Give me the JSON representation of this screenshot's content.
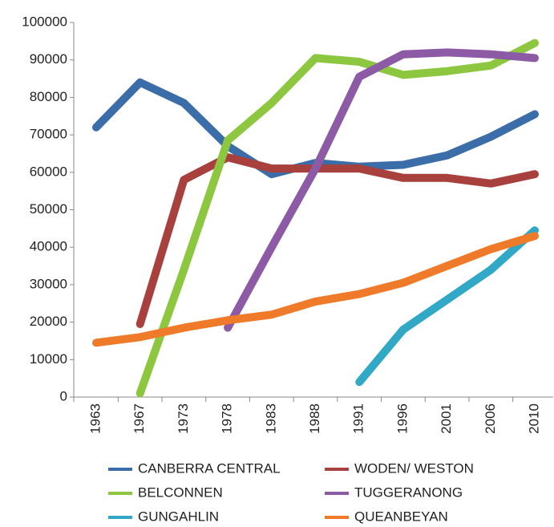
{
  "chart_data": {
    "type": "line",
    "categories": [
      "1963",
      "1967",
      "1973",
      "1978",
      "1983",
      "1988",
      "1991",
      "1996",
      "2001",
      "2006",
      "2010"
    ],
    "series": [
      {
        "name": "CANBERRA CENTRAL",
        "color": "#3b6ea8",
        "values": [
          72000,
          84000,
          78500,
          67000,
          59500,
          62500,
          61500,
          62000,
          64500,
          69500,
          75500
        ]
      },
      {
        "name": "WODEN/ WESTON",
        "color": "#a8403e",
        "values": [
          null,
          19500,
          58000,
          64000,
          61000,
          61000,
          61000,
          58500,
          58500,
          57000,
          59500
        ]
      },
      {
        "name": "BELCONNEN",
        "color": "#8dc63f",
        "values": [
          null,
          1000,
          34000,
          68500,
          78500,
          90500,
          89500,
          86000,
          87000,
          88500,
          94500
        ]
      },
      {
        "name": "TUGGERANONG",
        "color": "#8d5aa5",
        "values": [
          null,
          null,
          null,
          18500,
          40000,
          61000,
          85500,
          91500,
          92000,
          91500,
          90500
        ]
      },
      {
        "name": "GUNGAHLIN",
        "color": "#30a8c6",
        "values": [
          null,
          null,
          null,
          null,
          null,
          null,
          4000,
          18000,
          26000,
          34000,
          44500
        ]
      },
      {
        "name": "QUEANBEYAN",
        "color": "#ef7b2a",
        "values": [
          14500,
          16000,
          18500,
          20500,
          22000,
          25500,
          27500,
          30500,
          35000,
          39500,
          43000
        ]
      }
    ],
    "ylim": [
      0,
      100000
    ],
    "yticks": [
      0,
      10000,
      20000,
      30000,
      40000,
      50000,
      60000,
      70000,
      80000,
      90000,
      100000
    ],
    "grid": false,
    "legend": "bottom"
  }
}
